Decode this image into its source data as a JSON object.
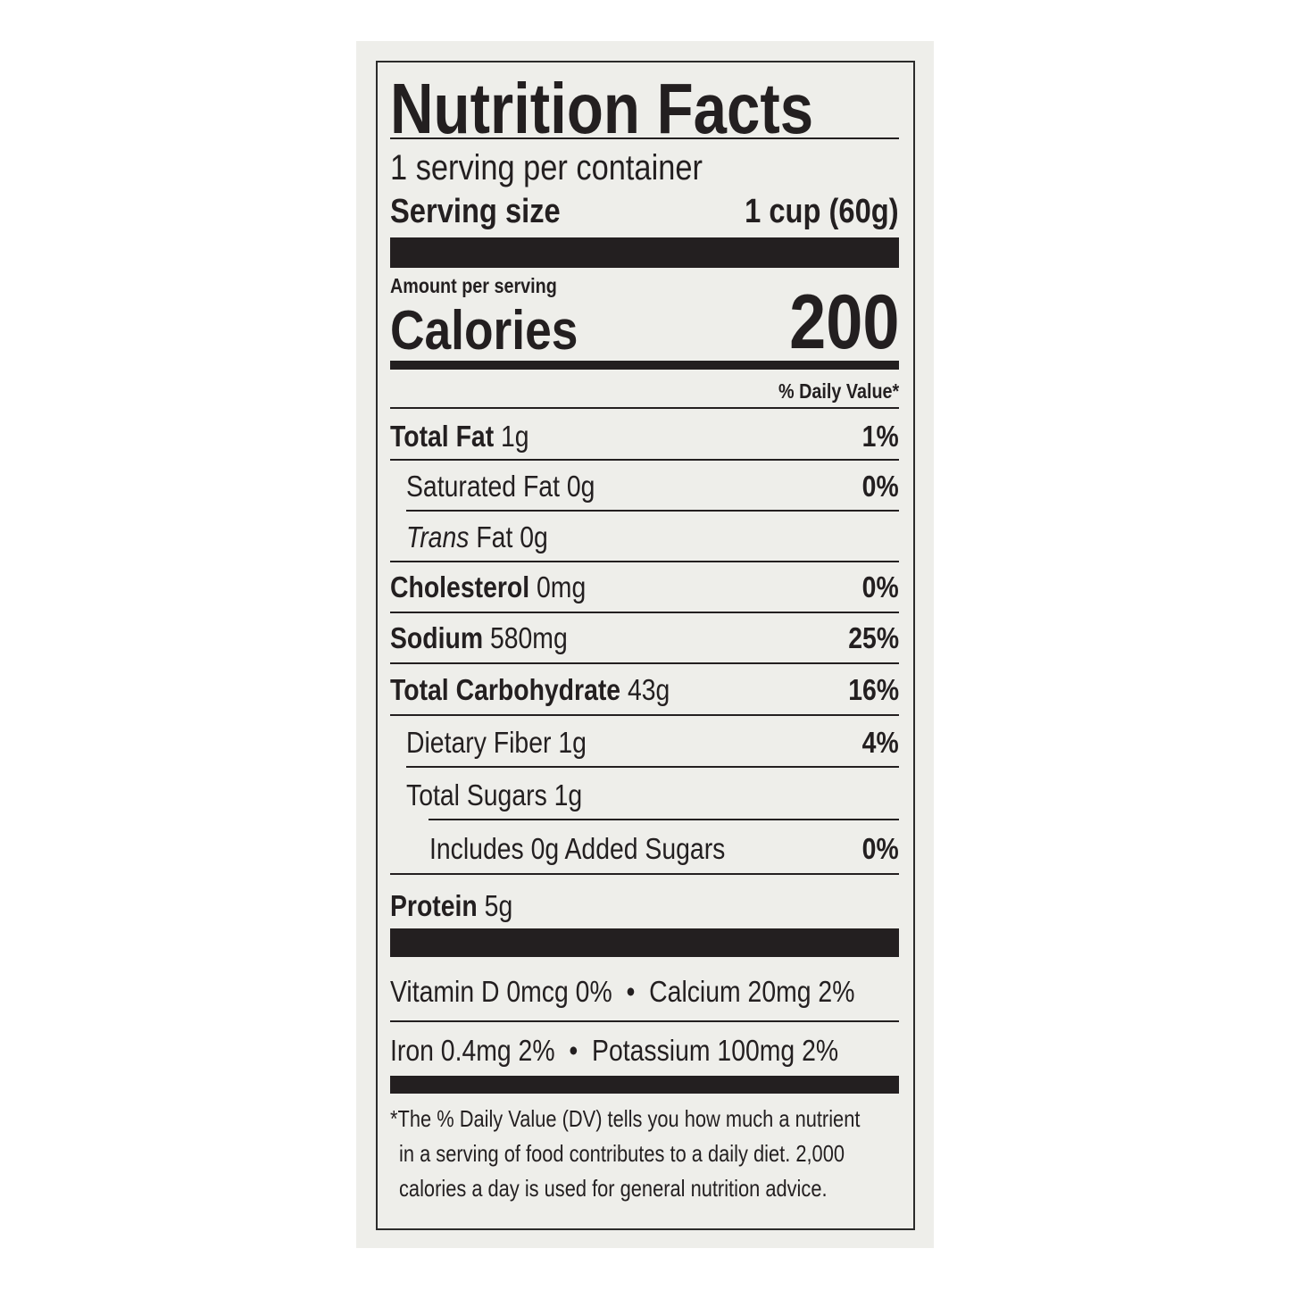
{
  "title": "Nutrition Facts",
  "servings_per_container": "1 serving per container",
  "serving_size": {
    "label": "Serving size",
    "value": "1 cup (60g)"
  },
  "amount_per_serving": "Amount per serving",
  "calories": {
    "label": "Calories",
    "value": "200"
  },
  "daily_value_header": "% Daily Value*",
  "nutrients": [
    {
      "name": "Total Fat",
      "amount": "1g",
      "dv": "1%"
    },
    {
      "name": "Saturated Fat",
      "amount": "0g",
      "dv": "0%"
    },
    {
      "name": "Trans",
      "name_rest": "Fat 0g",
      "dv": ""
    },
    {
      "name": "Cholesterol",
      "amount": "0mg",
      "dv": "0%"
    },
    {
      "name": "Sodium",
      "amount": "580mg",
      "dv": "25%"
    },
    {
      "name": "Total Carbohydrate",
      "amount": "43g",
      "dv": "16%"
    },
    {
      "name": "Dietary Fiber",
      "amount": "1g",
      "dv": "4%"
    },
    {
      "name": "Total Sugars",
      "amount": "1g",
      "dv": ""
    },
    {
      "name": "Includes 0g Added Sugars",
      "amount": "",
      "dv": "0%"
    },
    {
      "name": "Protein",
      "amount": "5g",
      "dv": ""
    }
  ],
  "micronutrients": [
    "Vitamin D 0mcg 0%  •  Calcium 20mg 2%",
    "Iron 0.4mg 2%  •  Potassium 100mg 2%"
  ],
  "footnote": [
    "*The % Daily Value (DV) tells you how much a nutrient",
    "in a serving of food contributes to a daily diet. 2,000",
    "calories a day is used for general nutrition advice."
  ]
}
